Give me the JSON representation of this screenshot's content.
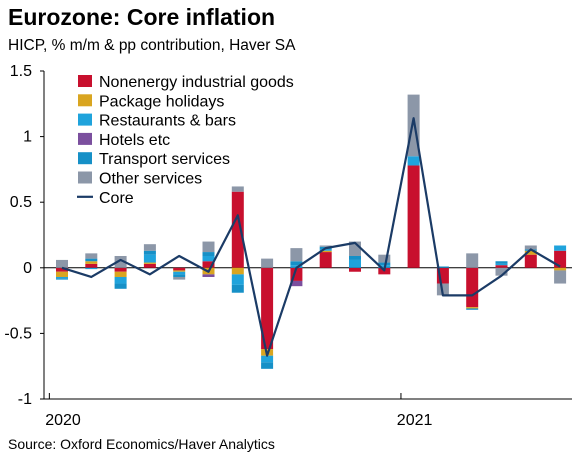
{
  "header": {
    "title": "Eurozone: Core inflation",
    "subtitle": "HICP, % m/m & pp contribution, Haver SA"
  },
  "footer": {
    "source": "Source: Oxford Economics/Haver Analytics"
  },
  "chart_data": {
    "type": "bar",
    "stacked": true,
    "ylim": [
      -1,
      1.5
    ],
    "yticks": [
      "1.5",
      "1",
      "0.5",
      "0",
      "-0.5",
      "-1"
    ],
    "ytick_values": [
      1.5,
      1,
      0.5,
      0,
      -0.5,
      -1
    ],
    "year_labels": [
      {
        "label": "2020",
        "index": 0
      },
      {
        "label": "2021",
        "index": 12
      }
    ],
    "legend_position": "top-left",
    "grid": false,
    "series": [
      {
        "name": "Nonenergy industrial goods",
        "color": "#c8102e",
        "values": [
          -0.03,
          0.03,
          -0.03,
          0.03,
          -0.02,
          0.05,
          0.58,
          -0.62,
          -0.1,
          0.12,
          -0.03,
          -0.05,
          0.78,
          -0.12,
          -0.3,
          0.02,
          0.1,
          0.13
        ]
      },
      {
        "name": "Package holidays",
        "color": "#d9a520",
        "values": [
          -0.04,
          0.02,
          -0.04,
          0.01,
          -0.01,
          -0.05,
          -0.05,
          -0.05,
          0.0,
          0.01,
          0.0,
          0.0,
          0.0,
          0.0,
          -0.01,
          0.0,
          0.03,
          -0.02
        ]
      },
      {
        "name": "Restaurants & bars",
        "color": "#1fa3dc",
        "values": [
          -0.01,
          -0.01,
          -0.05,
          0.06,
          -0.02,
          0.04,
          -0.08,
          -0.05,
          0.02,
          0.01,
          0.06,
          0.02,
          0.07,
          0.0,
          0.0,
          0.01,
          0.0,
          0.04
        ]
      },
      {
        "name": "Hotels etc",
        "color": "#7b4f9e",
        "values": [
          0.0,
          0.0,
          0.0,
          0.0,
          0.0,
          -0.02,
          0.0,
          0.0,
          -0.04,
          0.0,
          0.0,
          0.0,
          0.0,
          0.0,
          0.0,
          0.0,
          0.0,
          0.0
        ]
      },
      {
        "name": "Transport services",
        "color": "#1690c7",
        "values": [
          -0.01,
          0.02,
          -0.04,
          0.03,
          -0.02,
          0.03,
          -0.06,
          -0.05,
          0.03,
          0.02,
          0.03,
          0.02,
          0.0,
          0.01,
          -0.01,
          0.02,
          0.01,
          0.0
        ]
      },
      {
        "name": "Other services",
        "color": "#8c97a8",
        "values": [
          0.06,
          0.04,
          0.09,
          0.05,
          -0.02,
          0.08,
          0.04,
          0.07,
          0.1,
          0.01,
          0.11,
          0.06,
          0.47,
          -0.09,
          0.11,
          -0.06,
          0.03,
          -0.1
        ]
      }
    ],
    "core": {
      "name": "Core",
      "color": "#1b3b66",
      "values": [
        0.0,
        -0.07,
        0.06,
        -0.05,
        0.09,
        -0.03,
        0.4,
        -0.67,
        0.0,
        0.15,
        0.19,
        -0.02,
        1.14,
        -0.21,
        -0.21,
        -0.06,
        0.14,
        0.01
      ]
    }
  }
}
